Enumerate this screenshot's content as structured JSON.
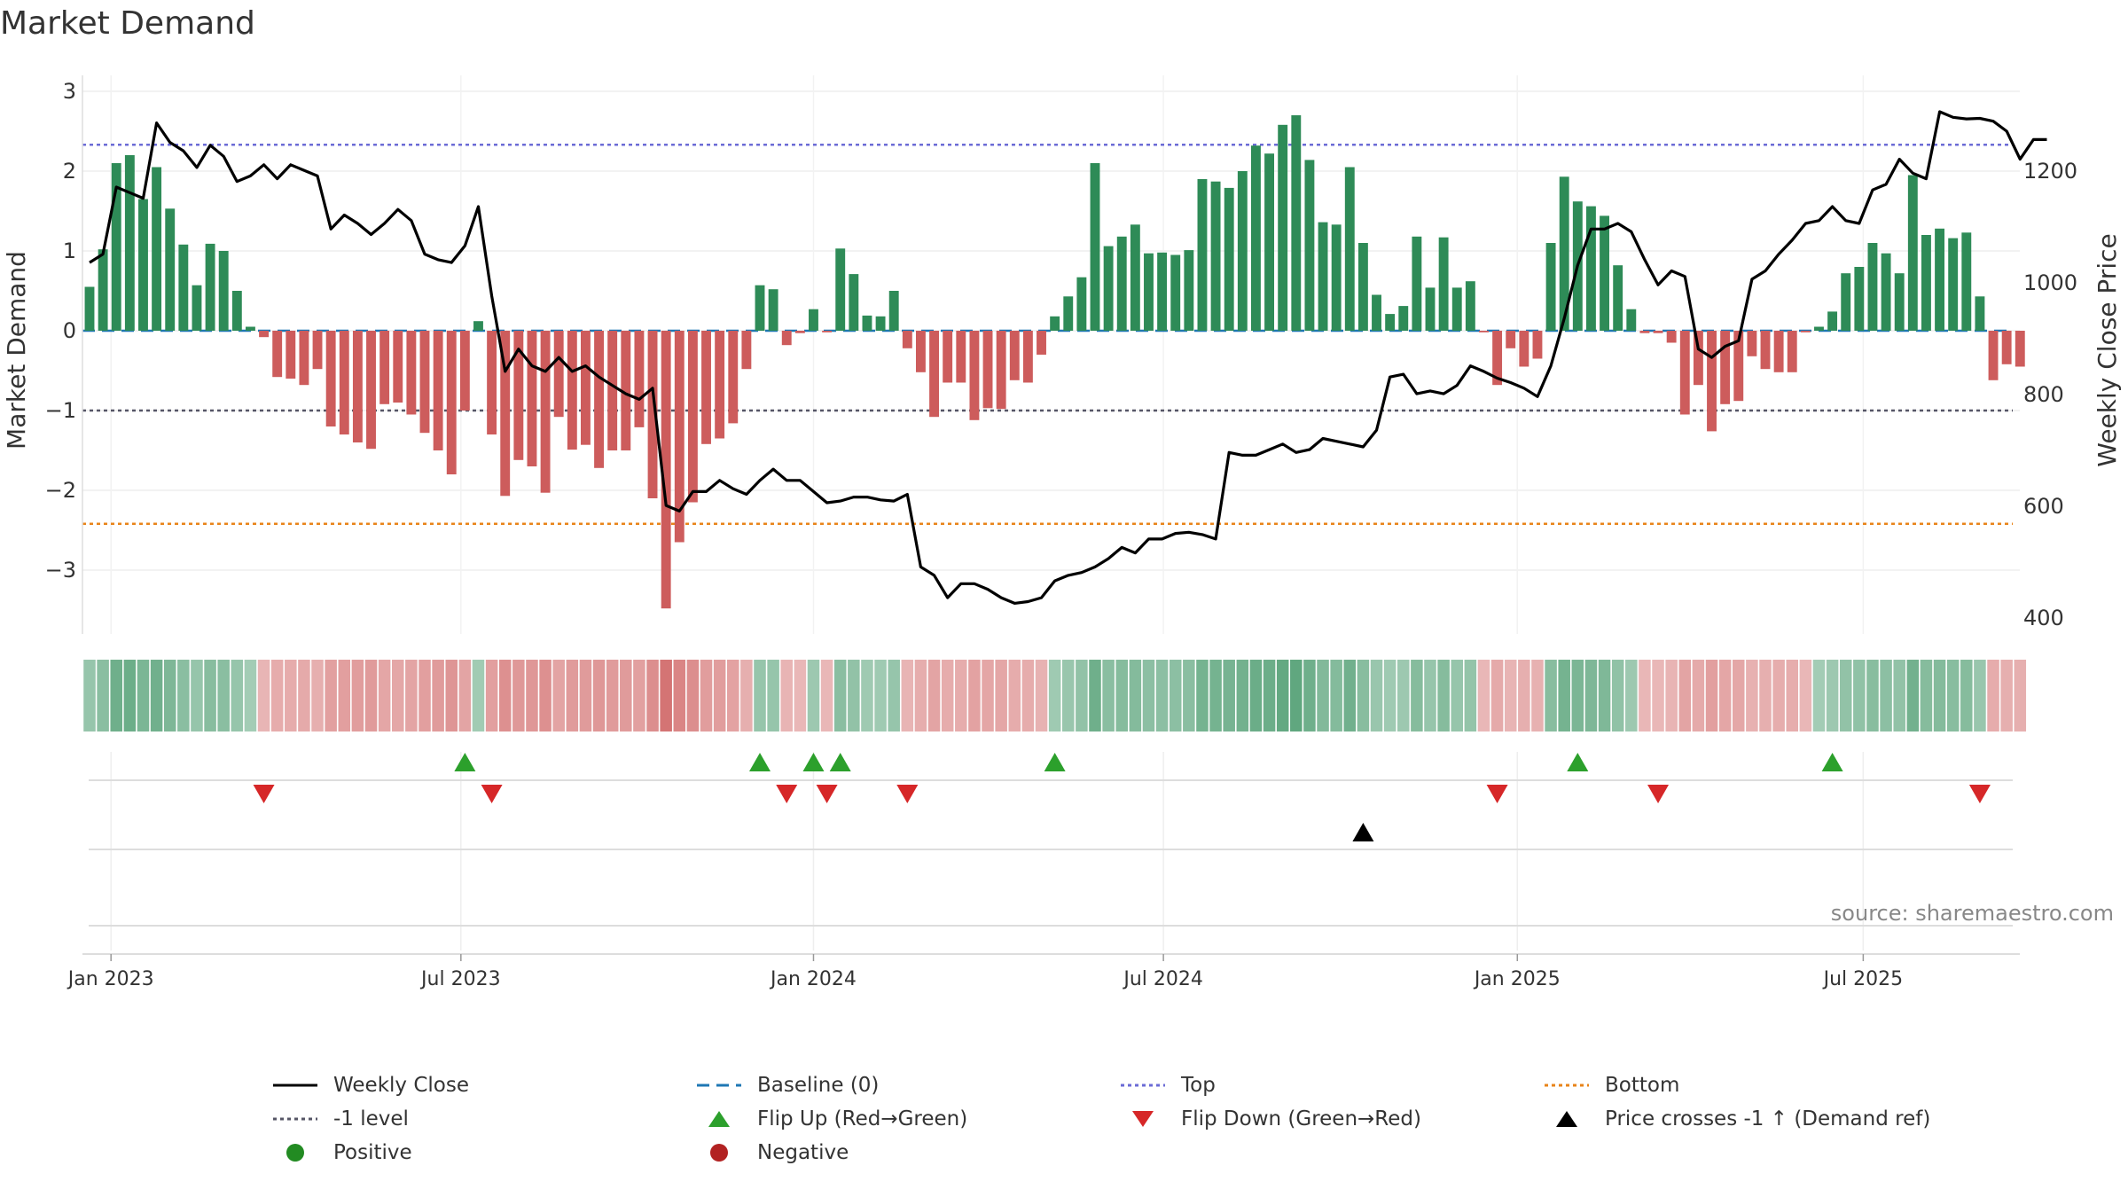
{
  "colors": {
    "positive_bar": "#2e8b57",
    "negative_bar": "#cd5c5c",
    "price": "#000000",
    "baseline": "#1f77b4",
    "top": "#6b6bd6",
    "minus1": "#555566",
    "bottom": "#e8841a",
    "flip_up": "#2ca02c",
    "flip_down": "#d62728",
    "cross": "#000000",
    "positive_dot": "#228b22",
    "negative_dot": "#b22222"
  },
  "chart_data": {
    "type": "bar",
    "title": "Market Demand",
    "source": "source: sharemaestro.com",
    "ylabel": "Market Demand",
    "y2label": "Weekly Close Price",
    "ylim": [
      -3.8,
      3.2
    ],
    "y2lim": [
      370,
      1370
    ],
    "yticks": [
      3,
      2,
      1,
      0,
      -1,
      -2,
      -3
    ],
    "ytick_labels": [
      "3",
      "2",
      "1",
      "0",
      "−1",
      "−2",
      "−3"
    ],
    "y2ticks": [
      1200,
      1000,
      800,
      600,
      400
    ],
    "y2tick_labels": [
      "1200",
      "1000",
      "800",
      "600",
      "400"
    ],
    "xticks": [
      {
        "week": 1.6,
        "label": "Jan 2023"
      },
      {
        "week": 27.7,
        "label": "Jul 2023"
      },
      {
        "week": 54.0,
        "label": "Jan 2024"
      },
      {
        "week": 80.1,
        "label": "Jul 2024"
      },
      {
        "week": 106.5,
        "label": "Jan 2025"
      },
      {
        "week": 132.3,
        "label": "Jul 2025"
      }
    ],
    "levels": {
      "baseline": 0,
      "top": 2.33,
      "minus1": -1,
      "bottom": -2.42
    },
    "demand": [
      0.55,
      1.02,
      2.1,
      2.2,
      1.65,
      2.05,
      1.53,
      1.08,
      0.57,
      1.09,
      1.0,
      0.5,
      0.05,
      -0.08,
      -0.58,
      -0.6,
      -0.68,
      -0.48,
      -1.2,
      -1.3,
      -1.4,
      -1.48,
      -0.92,
      -0.9,
      -1.05,
      -1.28,
      -1.5,
      -1.8,
      -1.0,
      0.12,
      -1.3,
      -2.07,
      -1.62,
      -1.7,
      -2.03,
      -1.08,
      -1.49,
      -1.43,
      -1.72,
      -1.5,
      -1.5,
      -1.21,
      -2.1,
      -3.48,
      -2.65,
      -2.15,
      -1.42,
      -1.35,
      -1.16,
      -0.48,
      0.57,
      0.52,
      -0.18,
      -0.03,
      0.27,
      -0.02,
      1.03,
      0.71,
      0.19,
      0.18,
      0.5,
      -0.22,
      -0.52,
      -1.08,
      -0.65,
      -0.65,
      -1.12,
      -0.97,
      -0.98,
      -0.62,
      -0.65,
      -0.3,
      0.18,
      0.43,
      0.67,
      2.1,
      1.06,
      1.18,
      1.33,
      0.97,
      0.98,
      0.95,
      1.01,
      1.9,
      1.87,
      1.79,
      2.0,
      2.32,
      2.22,
      2.58,
      2.7,
      2.14,
      1.36,
      1.33,
      2.05,
      1.1,
      0.45,
      0.21,
      0.31,
      1.18,
      0.54,
      1.17,
      0.54,
      0.62,
      -0.02,
      -0.68,
      -0.22,
      -0.45,
      -0.35,
      1.1,
      1.93,
      1.62,
      1.56,
      1.44,
      0.82,
      0.27,
      -0.03,
      -0.03,
      -0.15,
      -1.05,
      -0.68,
      -1.26,
      -0.92,
      -0.88,
      -0.32,
      -0.48,
      -0.52,
      -0.52,
      -0.02,
      0.05,
      0.24,
      0.72,
      0.8,
      1.1,
      0.97,
      0.72,
      1.95,
      1.2,
      1.28,
      1.16,
      1.23,
      0.43,
      -0.62,
      -0.42,
      -0.45
    ],
    "price": [
      1035,
      1050,
      1170,
      1160,
      1150,
      1285,
      1250,
      1235,
      1205,
      1245,
      1225,
      1180,
      1190,
      1210,
      1185,
      1210,
      1200,
      1190,
      1095,
      1120,
      1105,
      1085,
      1105,
      1130,
      1110,
      1050,
      1040,
      1035,
      1065,
      1135,
      975,
      840,
      880,
      850,
      840,
      865,
      840,
      850,
      830,
      815,
      800,
      790,
      810,
      600,
      590,
      625,
      625,
      645,
      630,
      620,
      645,
      665,
      645,
      645,
      625,
      605,
      608,
      615,
      615,
      610,
      608,
      620,
      490,
      475,
      435,
      460,
      460,
      450,
      435,
      425,
      428,
      435,
      465,
      475,
      480,
      490,
      505,
      525,
      515,
      540,
      540,
      550,
      552,
      548,
      540,
      695,
      690,
      690,
      700,
      710,
      695,
      700,
      720,
      715,
      710,
      705,
      735,
      830,
      835,
      800,
      805,
      800,
      815,
      850,
      840,
      828,
      820,
      810,
      795,
      850,
      935,
      1030,
      1095,
      1095,
      1105,
      1090,
      1040,
      995,
      1020,
      1010,
      880,
      865,
      885,
      895,
      1005,
      1020,
      1050,
      1075,
      1105,
      1110,
      1135,
      1110,
      1105,
      1165,
      1175,
      1220,
      1195,
      1185,
      1305,
      1295,
      1292,
      1293,
      1288,
      1270,
      1220,
      1255,
      1255
    ],
    "positive_strips": [
      0.7,
      0.8,
      0.95,
      1.0,
      0.85,
      0.95,
      0.8,
      0.7,
      0.55,
      0.7,
      0.65,
      0.5
    ],
    "flip_up_weeks": [
      28,
      50,
      54,
      56,
      72,
      111,
      130
    ],
    "flip_down_weeks": [
      13,
      30,
      52,
      55,
      61,
      105,
      117,
      141
    ],
    "cross_weeks": [
      95
    ],
    "legend": [
      [
        {
          "label": "Weekly Close",
          "symbol": "solid-line",
          "color_key": "price"
        },
        {
          "label": "Baseline (0)",
          "symbol": "dashed-line",
          "color_key": "baseline"
        },
        {
          "label": "Top",
          "symbol": "dotted-line",
          "color_key": "top"
        },
        {
          "label": "Bottom",
          "symbol": "dotted-line",
          "color_key": "bottom"
        }
      ],
      [
        {
          "label": "-1 level",
          "symbol": "dotted-line",
          "color_key": "minus1"
        },
        {
          "label": "Flip Up (Red→Green)",
          "symbol": "triangle-up",
          "color_key": "flip_up"
        },
        {
          "label": "Flip Down (Green→Red)",
          "symbol": "triangle-down",
          "color_key": "flip_down"
        },
        {
          "label": "Price crosses -1 ↑ (Demand ref)",
          "symbol": "triangle-up",
          "color_key": "cross"
        }
      ],
      [
        {
          "label": "Positive",
          "symbol": "dot",
          "color_key": "positive_dot"
        },
        {
          "label": "Negative",
          "symbol": "dot",
          "color_key": "negative_dot"
        }
      ]
    ]
  }
}
